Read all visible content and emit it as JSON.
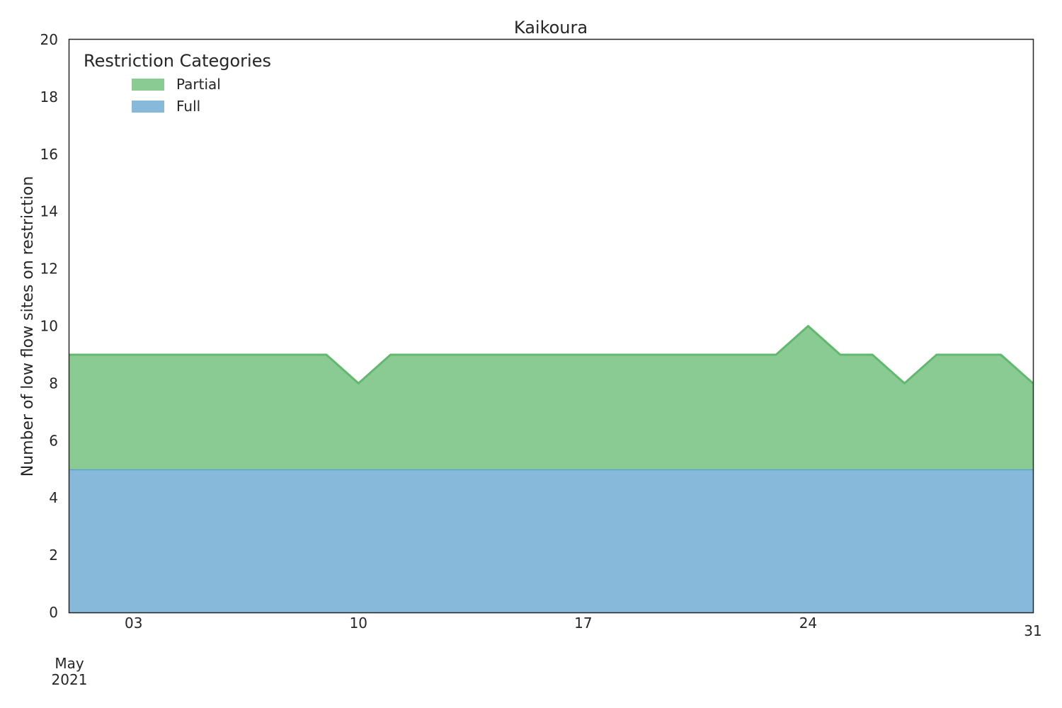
{
  "chart_data": {
    "type": "area",
    "stacked": true,
    "title": "Kaikoura",
    "xlabel": "",
    "ylabel": "Number of low flow sites on restriction",
    "x": [
      "2021-05-01",
      "2021-05-02",
      "2021-05-03",
      "2021-05-04",
      "2021-05-05",
      "2021-05-06",
      "2021-05-07",
      "2021-05-08",
      "2021-05-09",
      "2021-05-10",
      "2021-05-11",
      "2021-05-12",
      "2021-05-13",
      "2021-05-14",
      "2021-05-15",
      "2021-05-16",
      "2021-05-17",
      "2021-05-18",
      "2021-05-19",
      "2021-05-20",
      "2021-05-21",
      "2021-05-22",
      "2021-05-23",
      "2021-05-24",
      "2021-05-25",
      "2021-05-26",
      "2021-05-27",
      "2021-05-28",
      "2021-05-29",
      "2021-05-30",
      "2021-05-31"
    ],
    "series": [
      {
        "name": "Full",
        "color": "#86b9da",
        "line_color": "#5aa2d0",
        "values": [
          5,
          5,
          5,
          5,
          5,
          5,
          5,
          5,
          5,
          5,
          5,
          5,
          5,
          5,
          5,
          5,
          5,
          5,
          5,
          5,
          5,
          5,
          5,
          5,
          5,
          5,
          5,
          5,
          5,
          5,
          5
        ]
      },
      {
        "name": "Partial",
        "color": "#89cb93",
        "line_color": "#62b86e",
        "values": [
          4,
          4,
          4,
          4,
          4,
          4,
          4,
          4,
          4,
          3,
          4,
          4,
          4,
          4,
          4,
          4,
          4,
          4,
          4,
          4,
          4,
          4,
          4,
          5,
          4,
          4,
          3,
          4,
          4,
          4,
          3
        ]
      }
    ],
    "ylim": [
      0,
      20
    ],
    "yticks": [
      0,
      2,
      4,
      6,
      8,
      10,
      12,
      14,
      16,
      18,
      20
    ],
    "xticks": [
      {
        "date": "2021-05-03",
        "label": "03"
      },
      {
        "date": "2021-05-10",
        "label": "10"
      },
      {
        "date": "2021-05-17",
        "label": "17"
      },
      {
        "date": "2021-05-24",
        "label": "24"
      },
      {
        "date": "2021-05-31",
        "label": "31"
      }
    ],
    "x_secondary_label": [
      "May",
      "2021"
    ],
    "legend": {
      "title": "Restriction Categories",
      "entries": [
        "Partial",
        "Full"
      ],
      "placement": "top-left"
    },
    "grid": false
  }
}
